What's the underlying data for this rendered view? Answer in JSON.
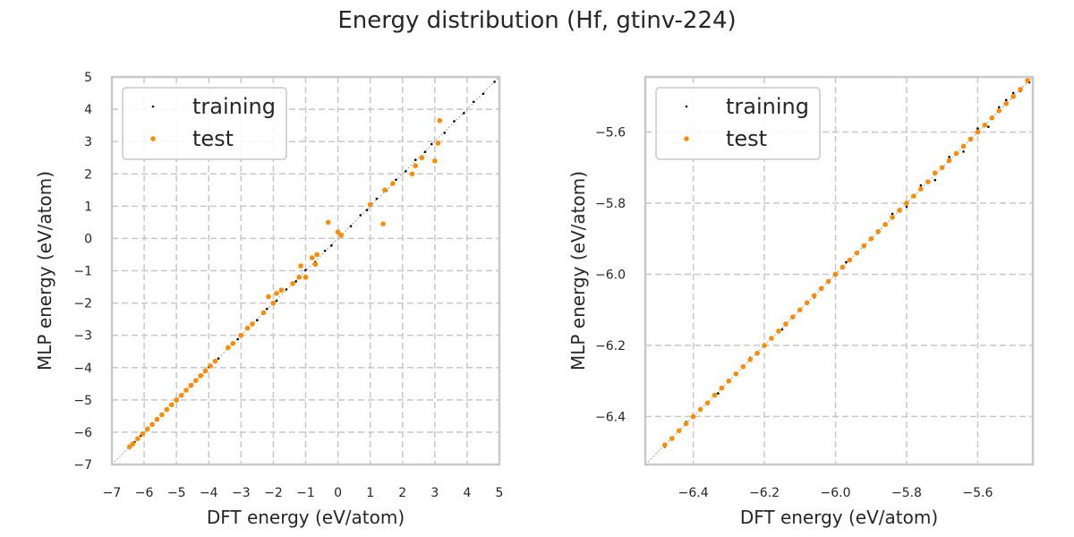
{
  "figure": {
    "title": "Energy distribution (Hf, gtinv-224)"
  },
  "colors": {
    "training": "#000000",
    "test": "#ff8c00",
    "grid": "#c8c8c8",
    "frame": "#c8c8c8",
    "diagonal": "#8f8f8f"
  },
  "chart_data": [
    {
      "type": "scatter",
      "xlabel": "DFT energy (eV/atom)",
      "ylabel": "MLP energy (eV/atom)",
      "xlim": [
        -7,
        5
      ],
      "ylim": [
        -7,
        5
      ],
      "xticks": [
        -7,
        -6,
        -5,
        -4,
        -3,
        -2,
        -1,
        0,
        1,
        2,
        3,
        4,
        5
      ],
      "yticks": [
        -7,
        -6,
        -5,
        -4,
        -3,
        -2,
        -1,
        0,
        1,
        2,
        3,
        4,
        5
      ],
      "tick_labels_x": [
        "−7",
        "−6",
        "−5",
        "−4",
        "−3",
        "−2",
        "−1",
        "0",
        "1",
        "2",
        "3",
        "4",
        "5"
      ],
      "tick_labels_y": [
        "−7",
        "−6",
        "−5",
        "−4",
        "−3",
        "−2",
        "−1",
        "0",
        "1",
        "2",
        "3",
        "4",
        "5"
      ],
      "grid": true,
      "diagonal": true,
      "legend_position": "top-left",
      "series": [
        {
          "name": "training",
          "marker": "dot",
          "points": [
            [
              -6.45,
              -6.46
            ],
            [
              -6.3,
              -6.31
            ],
            [
              -6.1,
              -6.11
            ],
            [
              -5.9,
              -5.88
            ],
            [
              -5.6,
              -5.62
            ],
            [
              -5.3,
              -5.29
            ],
            [
              -5.0,
              -5.02
            ],
            [
              -4.7,
              -4.68
            ],
            [
              -4.4,
              -4.41
            ],
            [
              -4.2,
              -4.24
            ],
            [
              -4.0,
              -3.98
            ],
            [
              -3.7,
              -3.72
            ],
            [
              -3.4,
              -3.38
            ],
            [
              -3.1,
              -3.12
            ],
            [
              -2.8,
              -2.77
            ],
            [
              -2.5,
              -2.53
            ],
            [
              -2.2,
              -2.18
            ],
            [
              -1.9,
              -1.93
            ],
            [
              -1.6,
              -1.58
            ],
            [
              -1.3,
              -1.33
            ],
            [
              -1.0,
              -0.98
            ],
            [
              -0.7,
              -0.73
            ],
            [
              -0.4,
              -0.38
            ],
            [
              -0.2,
              -0.22
            ],
            [
              0.1,
              0.12
            ],
            [
              0.4,
              0.38
            ],
            [
              0.7,
              0.72
            ],
            [
              0.9,
              0.88
            ],
            [
              1.2,
              1.23
            ],
            [
              1.5,
              1.48
            ],
            [
              1.8,
              1.82
            ],
            [
              2.1,
              2.08
            ],
            [
              2.4,
              2.43
            ],
            [
              2.7,
              2.68
            ],
            [
              2.9,
              2.92
            ],
            [
              3.3,
              3.27
            ],
            [
              3.6,
              3.63
            ],
            [
              3.9,
              3.88
            ],
            [
              4.2,
              4.23
            ],
            [
              4.5,
              4.48
            ],
            [
              4.85,
              4.85
            ]
          ]
        },
        {
          "name": "test",
          "marker": "circle",
          "points": [
            [
              -6.45,
              -6.45
            ],
            [
              -6.35,
              -6.36
            ],
            [
              -6.2,
              -6.2
            ],
            [
              -6.05,
              -6.05
            ],
            [
              -5.9,
              -5.9
            ],
            [
              -5.75,
              -5.76
            ],
            [
              -5.6,
              -5.6
            ],
            [
              -5.45,
              -5.46
            ],
            [
              -5.3,
              -5.3
            ],
            [
              -5.15,
              -5.15
            ],
            [
              -5.0,
              -5.0
            ],
            [
              -4.85,
              -4.86
            ],
            [
              -4.7,
              -4.7
            ],
            [
              -4.55,
              -4.55
            ],
            [
              -4.4,
              -4.4
            ],
            [
              -4.25,
              -4.25
            ],
            [
              -4.1,
              -4.1
            ],
            [
              -3.95,
              -3.95
            ],
            [
              -3.8,
              -3.8
            ],
            [
              -3.4,
              -3.38
            ],
            [
              -3.25,
              -3.25
            ],
            [
              -3.0,
              -3.0
            ],
            [
              -2.8,
              -2.78
            ],
            [
              -2.65,
              -2.65
            ],
            [
              -2.3,
              -2.3
            ],
            [
              -2.15,
              -1.8
            ],
            [
              -2.0,
              -2.0
            ],
            [
              -1.9,
              -1.7
            ],
            [
              -1.75,
              -1.6
            ],
            [
              -1.4,
              -1.4
            ],
            [
              -1.2,
              -1.2
            ],
            [
              -1.15,
              -0.85
            ],
            [
              -1.0,
              -1.2
            ],
            [
              -0.8,
              -0.6
            ],
            [
              -0.7,
              -0.8
            ],
            [
              -0.65,
              -0.5
            ],
            [
              -0.3,
              0.5
            ],
            [
              0.0,
              0.2
            ],
            [
              0.1,
              0.1
            ],
            [
              1.0,
              1.05
            ],
            [
              1.4,
              0.45
            ],
            [
              1.45,
              1.5
            ],
            [
              1.7,
              1.7
            ],
            [
              2.3,
              2.0
            ],
            [
              2.4,
              2.25
            ],
            [
              2.6,
              2.5
            ],
            [
              3.0,
              2.4
            ],
            [
              3.1,
              2.95
            ],
            [
              3.15,
              3.65
            ]
          ]
        }
      ]
    },
    {
      "type": "scatter",
      "xlabel": "DFT energy (eV/atom)",
      "ylabel": "MLP energy (eV/atom)",
      "xlim": [
        -6.535,
        -5.445
      ],
      "ylim": [
        -6.535,
        -5.445
      ],
      "xticks": [
        -6.4,
        -6.2,
        -6.0,
        -5.8,
        -5.6
      ],
      "yticks": [
        -6.4,
        -6.2,
        -6.0,
        -5.8,
        -5.6
      ],
      "tick_labels_x": [
        "−6.4",
        "−6.2",
        "−6.0",
        "−5.8",
        "−5.6"
      ],
      "tick_labels_y": [
        "−6.4",
        "−6.2",
        "−6.0",
        "−5.8",
        "−5.6"
      ],
      "grid": true,
      "diagonal": true,
      "legend_position": "top-left",
      "series": [
        {
          "name": "training",
          "marker": "dot",
          "points": [
            [
              -6.48,
              -6.485
            ],
            [
              -6.42,
              -6.415
            ],
            [
              -6.33,
              -6.335
            ],
            [
              -6.24,
              -6.235
            ],
            [
              -6.15,
              -6.155
            ],
            [
              -6.06,
              -6.065
            ],
            [
              -5.97,
              -5.966
            ],
            [
              -5.88,
              -5.884
            ],
            [
              -5.84,
              -5.83
            ],
            [
              -5.8,
              -5.81
            ],
            [
              -5.76,
              -5.75
            ],
            [
              -5.72,
              -5.735
            ],
            [
              -5.68,
              -5.67
            ],
            [
              -5.64,
              -5.655
            ],
            [
              -5.6,
              -5.59
            ],
            [
              -5.57,
              -5.585
            ],
            [
              -5.54,
              -5.53
            ],
            [
              -5.52,
              -5.51
            ],
            [
              -5.5,
              -5.49
            ],
            [
              -5.48,
              -5.485
            ],
            [
              -5.46,
              -5.455
            ],
            [
              -5.455,
              -5.46
            ]
          ]
        },
        {
          "name": "test",
          "marker": "circle",
          "points": [
            [
              -6.48,
              -6.48
            ],
            [
              -6.46,
              -6.462
            ],
            [
              -6.44,
              -6.44
            ],
            [
              -6.42,
              -6.42
            ],
            [
              -6.4,
              -6.4
            ],
            [
              -6.38,
              -6.38
            ],
            [
              -6.36,
              -6.362
            ],
            [
              -6.34,
              -6.34
            ],
            [
              -6.32,
              -6.32
            ],
            [
              -6.3,
              -6.3
            ],
            [
              -6.28,
              -6.28
            ],
            [
              -6.26,
              -6.26
            ],
            [
              -6.24,
              -6.24
            ],
            [
              -6.22,
              -6.222
            ],
            [
              -6.2,
              -6.2
            ],
            [
              -6.18,
              -6.18
            ],
            [
              -6.16,
              -6.16
            ],
            [
              -6.14,
              -6.14
            ],
            [
              -6.12,
              -6.12
            ],
            [
              -6.1,
              -6.1
            ],
            [
              -6.08,
              -6.08
            ],
            [
              -6.06,
              -6.06
            ],
            [
              -6.04,
              -6.04
            ],
            [
              -6.02,
              -6.02
            ],
            [
              -6.0,
              -6.0
            ],
            [
              -5.98,
              -5.98
            ],
            [
              -5.96,
              -5.96
            ],
            [
              -5.94,
              -5.94
            ],
            [
              -5.92,
              -5.92
            ],
            [
              -5.9,
              -5.9
            ],
            [
              -5.88,
              -5.88
            ],
            [
              -5.86,
              -5.86
            ],
            [
              -5.84,
              -5.84
            ],
            [
              -5.82,
              -5.82
            ],
            [
              -5.8,
              -5.8
            ],
            [
              -5.78,
              -5.78
            ],
            [
              -5.76,
              -5.76
            ],
            [
              -5.74,
              -5.74
            ],
            [
              -5.72,
              -5.715
            ],
            [
              -5.7,
              -5.7
            ],
            [
              -5.68,
              -5.68
            ],
            [
              -5.66,
              -5.66
            ],
            [
              -5.64,
              -5.64
            ],
            [
              -5.62,
              -5.62
            ],
            [
              -5.6,
              -5.6
            ],
            [
              -5.58,
              -5.58
            ],
            [
              -5.56,
              -5.56
            ],
            [
              -5.54,
              -5.54
            ],
            [
              -5.52,
              -5.52
            ],
            [
              -5.5,
              -5.5
            ],
            [
              -5.48,
              -5.48
            ],
            [
              -5.46,
              -5.455
            ]
          ]
        }
      ]
    }
  ]
}
